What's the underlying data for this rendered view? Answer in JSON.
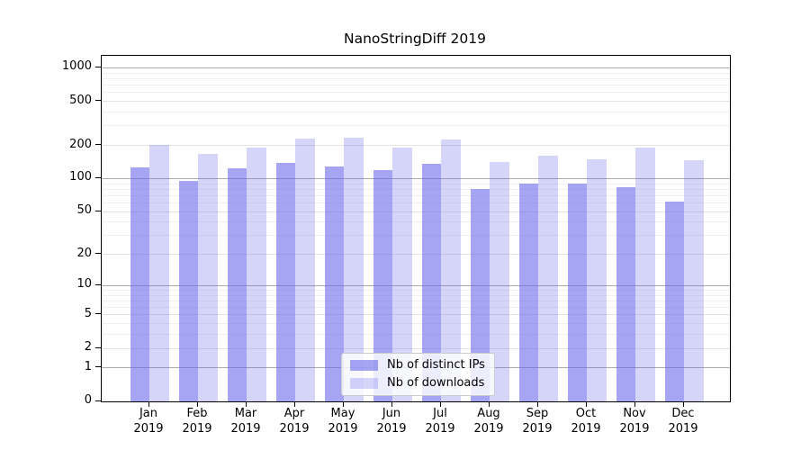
{
  "figure": {
    "background": "#ffffff"
  },
  "chart_data": {
    "type": "bar",
    "title": "NanoStringDiff 2019",
    "categories": [
      "Jan",
      "Feb",
      "Mar",
      "Apr",
      "May",
      "Jun",
      "Jul",
      "Aug",
      "Sep",
      "Oct",
      "Nov",
      "Dec"
    ],
    "category_sub_label": "2019",
    "series": [
      {
        "name": "Nb of distinct IPs",
        "color": "rgba(100,100,235,0.58)",
        "values": [
          127,
          95,
          125,
          138,
          129,
          120,
          137,
          80,
          90,
          90,
          84,
          62
        ]
      },
      {
        "name": "Nb of downloads",
        "color": "rgba(100,100,235,0.27)",
        "values": [
          202,
          168,
          190,
          232,
          237,
          190,
          225,
          142,
          162,
          149,
          190,
          148
        ]
      }
    ],
    "y_axis": {
      "scale": "log10(1+v)",
      "ticks": [
        0,
        1,
        2,
        5,
        10,
        20,
        50,
        100,
        200,
        500,
        1000
      ],
      "ylim": [
        0,
        1285
      ],
      "grid_decades": [
        1,
        10,
        100,
        1000
      ],
      "grid_mediums": [
        2,
        5,
        20,
        50,
        200,
        500
      ],
      "grid_minors": [
        3,
        4,
        6,
        7,
        8,
        9,
        30,
        40,
        60,
        70,
        80,
        90,
        300,
        400,
        600,
        700,
        800,
        900
      ]
    },
    "legend": {
      "position": "bottom-center",
      "entries": [
        "Nb of distinct IPs",
        "Nb of downloads"
      ]
    },
    "grid": true,
    "colors": {
      "axis": "#000000",
      "text": "#000000",
      "grid_decade": "#ababab",
      "grid_medium": "#e3e3e3",
      "grid_minor": "#f0f0f0"
    }
  }
}
